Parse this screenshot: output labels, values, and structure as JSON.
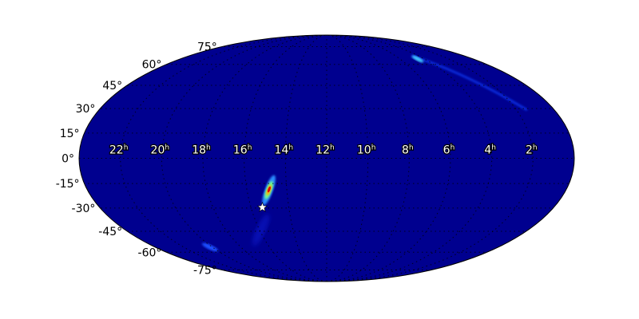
{
  "chart_data": {
    "type": "heatmap",
    "projection": "mollweide",
    "title": "",
    "grid": true,
    "colormap": "jet",
    "background_color": "#00008f",
    "ra_ticks": [
      {
        "hours": 22,
        "label": "22",
        "unit": "h"
      },
      {
        "hours": 20,
        "label": "20",
        "unit": "h"
      },
      {
        "hours": 18,
        "label": "18",
        "unit": "h"
      },
      {
        "hours": 16,
        "label": "16",
        "unit": "h"
      },
      {
        "hours": 14,
        "label": "14",
        "unit": "h"
      },
      {
        "hours": 12,
        "label": "12",
        "unit": "h"
      },
      {
        "hours": 10,
        "label": "10",
        "unit": "h"
      },
      {
        "hours": 8,
        "label": "8",
        "unit": "h"
      },
      {
        "hours": 6,
        "label": "6",
        "unit": "h"
      },
      {
        "hours": 4,
        "label": "4",
        "unit": "h"
      },
      {
        "hours": 2,
        "label": "2",
        "unit": "h"
      }
    ],
    "dec_ticks": [
      {
        "deg": 75,
        "label": "75°"
      },
      {
        "deg": 60,
        "label": "60°"
      },
      {
        "deg": 45,
        "label": "45°"
      },
      {
        "deg": 30,
        "label": "30°"
      },
      {
        "deg": 15,
        "label": "15°"
      },
      {
        "deg": 0,
        "label": "0°"
      },
      {
        "deg": -15,
        "label": "-15°"
      },
      {
        "deg": -30,
        "label": "-30°"
      },
      {
        "deg": -45,
        "label": "-45°"
      },
      {
        "deg": -60,
        "label": "-60°"
      },
      {
        "deg": -75,
        "label": "-75°"
      }
    ],
    "probability_peak": {
      "ra_hours": 14.9,
      "dec_deg": -19
    },
    "marker": {
      "symbol": "star",
      "color": "#ffffff",
      "ra_hours": 15.4,
      "dec_deg": -29.6
    }
  }
}
